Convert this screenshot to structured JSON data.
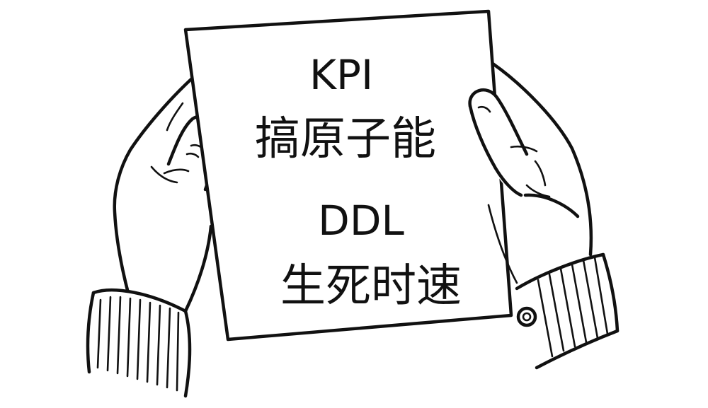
{
  "sign": {
    "line1": "KPI",
    "line2": "搞原子能",
    "line3": "DDL",
    "line4": "生死时速"
  },
  "colors": {
    "ink": "#111111",
    "paper": "#ffffff",
    "background": "#ffffff"
  }
}
